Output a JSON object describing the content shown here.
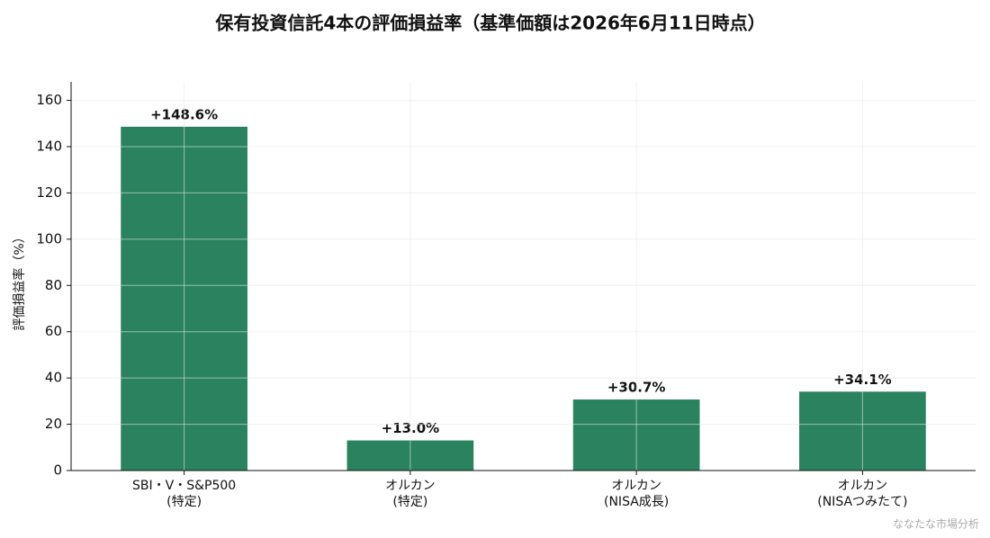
{
  "chart_data": {
    "type": "bar",
    "title": "保有投資信託4本の評価損益率（基準価額は2026年6月11日時点）",
    "y_label": "評価損益率（%）",
    "categories": [
      [
        "SBI・V・S&P500",
        "(特定)"
      ],
      [
        "オルカン",
        "(特定)"
      ],
      [
        "オルカン",
        "(NISA成長)"
      ],
      [
        "オルカン",
        "(NISAつみたて)"
      ]
    ],
    "values": [
      148.6,
      13.0,
      30.7,
      34.1
    ],
    "value_labels": [
      "+148.6%",
      "+13.0%",
      "+30.7%",
      "+34.1%"
    ],
    "color": "#2a835e",
    "ylim": [
      0,
      168
    ],
    "yticks": [
      0,
      20,
      40,
      60,
      80,
      100,
      120,
      140,
      160
    ],
    "grid": true,
    "source": "ななたな市場分析"
  }
}
